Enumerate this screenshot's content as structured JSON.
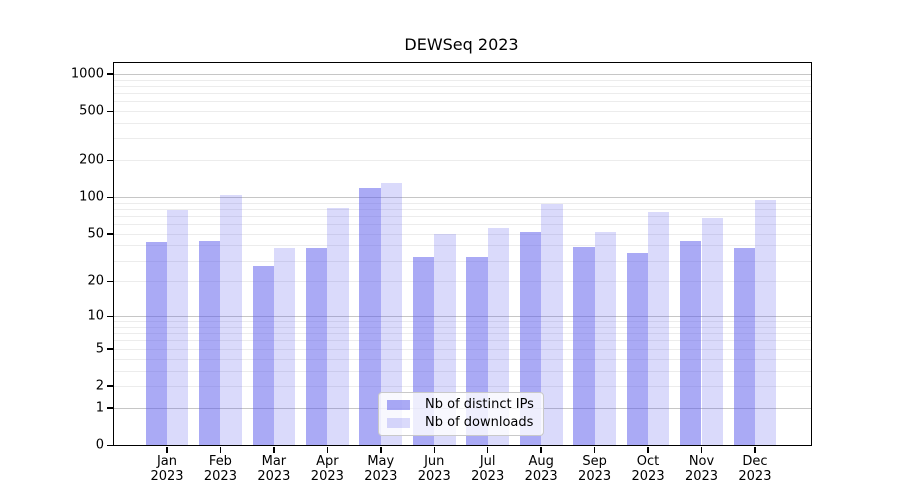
{
  "title": "DEWSeq 2023",
  "chart_data": {
    "type": "bar",
    "title": "DEWSeq 2023",
    "categories": [
      "Jan",
      "Feb",
      "Mar",
      "Apr",
      "May",
      "Jun",
      "Jul",
      "Aug",
      "Sep",
      "Oct",
      "Nov",
      "Dec"
    ],
    "year_label": "2023",
    "series": [
      {
        "name": "Nb of distinct IPs",
        "key": "distinct-ips",
        "color": "rgba(85,85,235,0.50)",
        "values": [
          43,
          44,
          27,
          38,
          118,
          32,
          32,
          52,
          39,
          35,
          44,
          38
        ]
      },
      {
        "name": "Nb of downloads",
        "key": "downloads",
        "color": "rgba(85,85,235,0.22)",
        "values": [
          78,
          104,
          38,
          82,
          130,
          50,
          56,
          88,
          52,
          76,
          67,
          95
        ]
      }
    ],
    "xlabel": "",
    "ylabel": "",
    "yscale": "log1p",
    "yticks": [
      0,
      1,
      2,
      5,
      10,
      20,
      50,
      100,
      200,
      500,
      1000
    ],
    "ylim": [
      0,
      1250
    ],
    "grid": true,
    "legend_position": "lower-center"
  },
  "colors": {
    "major_grid": "#c6c6c6",
    "minor_grid": "#ececec",
    "axis": "#000000",
    "background": "#ffffff"
  }
}
